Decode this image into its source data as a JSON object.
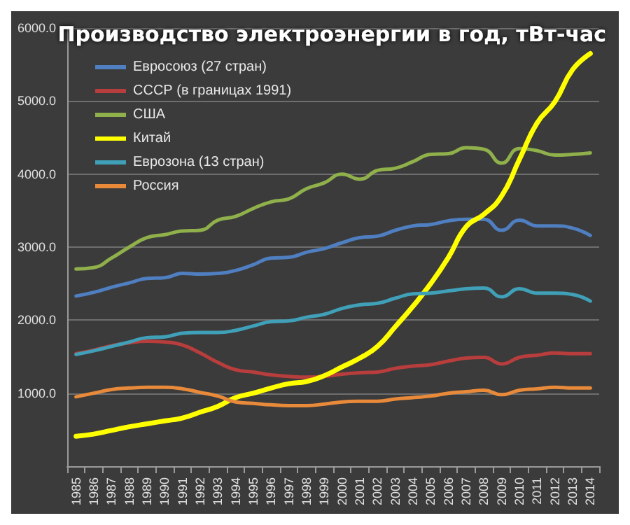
{
  "chart_data": {
    "type": "line",
    "title": "Производство электроэнергии в год, тВт-час",
    "categories": [
      "1985",
      "1986",
      "1987",
      "1988",
      "1989",
      "1990",
      "1991",
      "1992",
      "1993",
      "1994",
      "1995",
      "1996",
      "1997",
      "1998",
      "1999",
      "2000",
      "2001",
      "2002",
      "2003",
      "2004",
      "2005",
      "2006",
      "2007",
      "2008",
      "2009",
      "2010",
      "2011",
      "2012",
      "2013",
      "2014"
    ],
    "series": [
      {
        "name": "Евросоюз (27 стран)",
        "color": "#4f7fc1",
        "values": [
          2330,
          2380,
          2450,
          2510,
          2570,
          2580,
          2640,
          2630,
          2640,
          2680,
          2760,
          2850,
          2860,
          2930,
          2980,
          3060,
          3130,
          3150,
          3230,
          3290,
          3310,
          3360,
          3380,
          3380,
          3230,
          3370,
          3290,
          3290,
          3260,
          3160
        ]
      },
      {
        "name": "СССР (в границах 1991)",
        "color": "#b83d3d",
        "values": [
          1540,
          1590,
          1650,
          1690,
          1710,
          1700,
          1660,
          1550,
          1420,
          1320,
          1290,
          1250,
          1230,
          1220,
          1230,
          1260,
          1280,
          1290,
          1340,
          1370,
          1390,
          1440,
          1480,
          1490,
          1400,
          1490,
          1520,
          1550,
          1540,
          1540
        ]
      },
      {
        "name": "США",
        "color": "#8fb04a",
        "values": [
          2700,
          2720,
          2850,
          3000,
          3130,
          3170,
          3220,
          3230,
          3370,
          3420,
          3530,
          3620,
          3660,
          3800,
          3880,
          4000,
          3930,
          4050,
          4080,
          4170,
          4270,
          4280,
          4360,
          4340,
          4150,
          4350,
          4320,
          4260,
          4270,
          4290
        ]
      },
      {
        "name": "Китай",
        "color": "#ffff00",
        "values": [
          410,
          440,
          490,
          540,
          580,
          620,
          660,
          740,
          820,
          940,
          1000,
          1070,
          1130,
          1160,
          1240,
          1360,
          1480,
          1640,
          1910,
          2190,
          2500,
          2860,
          3280,
          3450,
          3700,
          4200,
          4700,
          4990,
          5430,
          5650
        ]
      },
      {
        "name": "Еврозона (13 стран)",
        "color": "#3fa0b8",
        "values": [
          1530,
          1580,
          1640,
          1700,
          1760,
          1770,
          1820,
          1830,
          1830,
          1860,
          1920,
          1980,
          1990,
          2040,
          2080,
          2160,
          2210,
          2230,
          2300,
          2360,
          2370,
          2400,
          2430,
          2440,
          2320,
          2430,
          2370,
          2370,
          2350,
          2260
        ]
      },
      {
        "name": "Россия",
        "color": "#e88a3a",
        "values": [
          950,
          1000,
          1050,
          1070,
          1080,
          1080,
          1060,
          1010,
          960,
          880,
          860,
          840,
          830,
          830,
          850,
          880,
          890,
          890,
          920,
          940,
          960,
          1000,
          1020,
          1040,
          980,
          1040,
          1060,
          1080,
          1070,
          1070
        ]
      }
    ],
    "ylim": [
      0,
      6000
    ],
    "yticks": [
      {
        "value": 0,
        "label": null
      },
      {
        "value": 1000,
        "label": "1000.0"
      },
      {
        "value": 2000,
        "label": "2000.0"
      },
      {
        "value": 3000,
        "label": "3000.0"
      },
      {
        "value": 4000,
        "label": "4000.0"
      },
      {
        "value": 5000,
        "label": "5000.0"
      },
      {
        "value": 6000,
        "label": "6000.0"
      }
    ],
    "grid": "y",
    "legend": "top left",
    "marker": "none",
    "line_style": "solid"
  }
}
